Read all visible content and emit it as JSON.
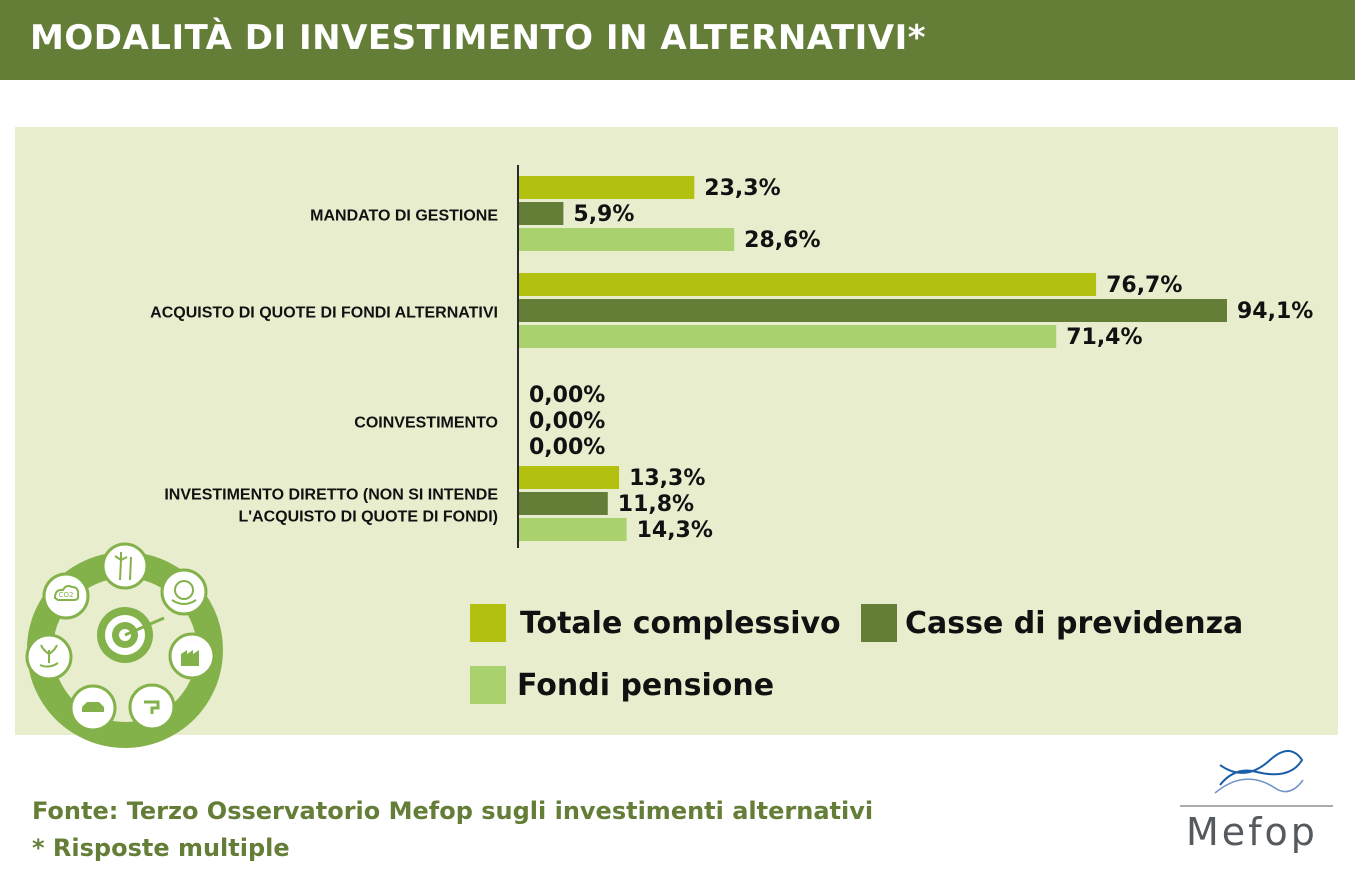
{
  "header": {
    "title": "MODALITÀ DI INVESTIMENTO IN ALTERNATIVI*"
  },
  "chart_data": {
    "type": "bar",
    "orientation": "horizontal",
    "title": "",
    "xlabel": "",
    "ylabel": "",
    "xlim": [
      0,
      100
    ],
    "grid": false,
    "legend_position": "bottom-right",
    "categories": [
      {
        "label_lines": [
          "MANDATO DI GESTIONE"
        ]
      },
      {
        "label_lines": [
          "ACQUISTO DI QUOTE DI FONDI ALTERNATIVI"
        ]
      },
      {
        "label_lines": [
          "COINVESTIMENTO"
        ]
      },
      {
        "label_lines": [
          "INVESTIMENTO DIRETTO (NON SI INTENDE",
          "L'ACQUISTO DI QUOTE DI FONDI)"
        ]
      }
    ],
    "series": [
      {
        "name": "Totale complessivo",
        "color": "#b2c10f",
        "values": [
          23.3,
          76.7,
          0.0,
          13.3
        ],
        "labels": [
          "23,3%",
          "76,7%",
          "0,00%",
          "13,3%"
        ]
      },
      {
        "name": "Casse di previdenza",
        "color": "#647e38",
        "values": [
          5.9,
          94.1,
          0.0,
          11.8
        ],
        "labels": [
          "5,9%",
          "94,1%",
          "0,00%",
          "11,8%"
        ]
      },
      {
        "name": "Fondi pensione",
        "color": "#a9d26e",
        "values": [
          28.6,
          71.4,
          0.0,
          14.3
        ],
        "labels": [
          "28,6%",
          "71,4%",
          "0,00%",
          "14,3%"
        ]
      }
    ]
  },
  "footer": {
    "source": "Fonte: Terzo Osservatorio Mefop sugli investimenti alternativi",
    "note": "* Risposte multiple"
  },
  "logo": {
    "text": "Mefop"
  },
  "decoration": {
    "icons": [
      "target-icon",
      "wind-turbine-icon",
      "globe-hands-icon",
      "factory-icon",
      "water-tap-icon",
      "car-icon",
      "plant-hand-icon",
      "co2-cloud-icon"
    ],
    "co2_text": "CO2"
  }
}
